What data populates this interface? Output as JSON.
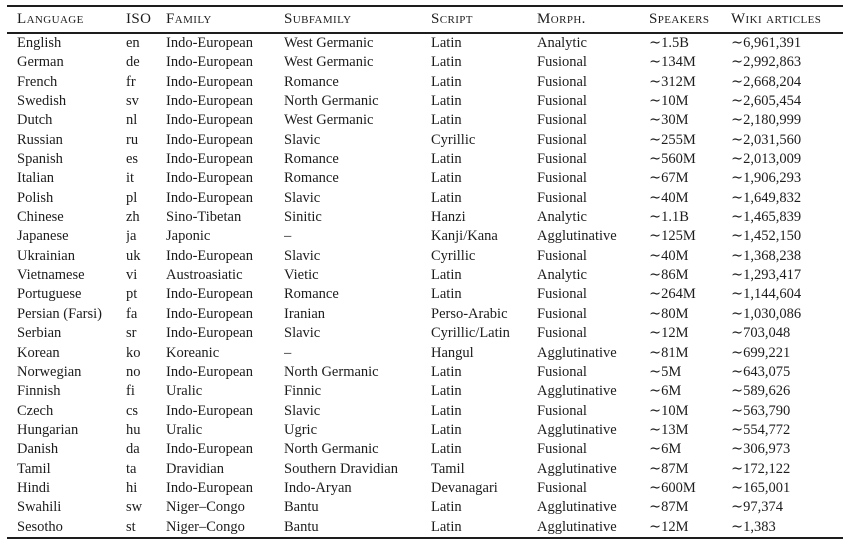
{
  "table": {
    "columns": [
      {
        "key": "language",
        "label": "Language"
      },
      {
        "key": "iso",
        "label": "ISO"
      },
      {
        "key": "family",
        "label": "Family"
      },
      {
        "key": "subfamily",
        "label": "Subfamily"
      },
      {
        "key": "script",
        "label": "Script"
      },
      {
        "key": "morph",
        "label": "Morph."
      },
      {
        "key": "speakers",
        "label": "Speakers"
      },
      {
        "key": "wiki",
        "label": "Wiki articles"
      }
    ],
    "rows": [
      [
        "English",
        "en",
        "Indo-European",
        "West Germanic",
        "Latin",
        "Analytic",
        "∼1.5B",
        "∼6,961,391"
      ],
      [
        "German",
        "de",
        "Indo-European",
        "West Germanic",
        "Latin",
        "Fusional",
        "∼134M",
        "∼2,992,863"
      ],
      [
        "French",
        "fr",
        "Indo-European",
        "Romance",
        "Latin",
        "Fusional",
        "∼312M",
        "∼2,668,204"
      ],
      [
        "Swedish",
        "sv",
        "Indo-European",
        "North Germanic",
        "Latin",
        "Fusional",
        "∼10M",
        "∼2,605,454"
      ],
      [
        "Dutch",
        "nl",
        "Indo-European",
        "West Germanic",
        "Latin",
        "Fusional",
        "∼30M",
        "∼2,180,999"
      ],
      [
        "Russian",
        "ru",
        "Indo-European",
        "Slavic",
        "Cyrillic",
        "Fusional",
        "∼255M",
        "∼2,031,560"
      ],
      [
        "Spanish",
        "es",
        "Indo-European",
        "Romance",
        "Latin",
        "Fusional",
        "∼560M",
        "∼2,013,009"
      ],
      [
        "Italian",
        "it",
        "Indo-European",
        "Romance",
        "Latin",
        "Fusional",
        "∼67M",
        "∼1,906,293"
      ],
      [
        "Polish",
        "pl",
        "Indo-European",
        "Slavic",
        "Latin",
        "Fusional",
        "∼40M",
        "∼1,649,832"
      ],
      [
        "Chinese",
        "zh",
        "Sino-Tibetan",
        "Sinitic",
        "Hanzi",
        "Analytic",
        "∼1.1B",
        "∼1,465,839"
      ],
      [
        "Japanese",
        "ja",
        "Japonic",
        "–",
        "Kanji/Kana",
        "Agglutinative",
        "∼125M",
        "∼1,452,150"
      ],
      [
        "Ukrainian",
        "uk",
        "Indo-European",
        "Slavic",
        "Cyrillic",
        "Fusional",
        "∼40M",
        "∼1,368,238"
      ],
      [
        "Vietnamese",
        "vi",
        "Austroasiatic",
        "Vietic",
        "Latin",
        "Analytic",
        "∼86M",
        "∼1,293,417"
      ],
      [
        "Portuguese",
        "pt",
        "Indo-European",
        "Romance",
        "Latin",
        "Fusional",
        "∼264M",
        "∼1,144,604"
      ],
      [
        "Persian (Farsi)",
        "fa",
        "Indo-European",
        "Iranian",
        "Perso-Arabic",
        "Fusional",
        "∼80M",
        "∼1,030,086"
      ],
      [
        "Serbian",
        "sr",
        "Indo-European",
        "Slavic",
        "Cyrillic/Latin",
        "Fusional",
        "∼12M",
        "∼703,048"
      ],
      [
        "Korean",
        "ko",
        "Koreanic",
        "–",
        "Hangul",
        "Agglutinative",
        "∼81M",
        "∼699,221"
      ],
      [
        "Norwegian",
        "no",
        "Indo-European",
        "North Germanic",
        "Latin",
        "Fusional",
        "∼5M",
        "∼643,075"
      ],
      [
        "Finnish",
        "fi",
        "Uralic",
        "Finnic",
        "Latin",
        "Agglutinative",
        "∼6M",
        "∼589,626"
      ],
      [
        "Czech",
        "cs",
        "Indo-European",
        "Slavic",
        "Latin",
        "Fusional",
        "∼10M",
        "∼563,790"
      ],
      [
        "Hungarian",
        "hu",
        "Uralic",
        "Ugric",
        "Latin",
        "Agglutinative",
        "∼13M",
        "∼554,772"
      ],
      [
        "Danish",
        "da",
        "Indo-European",
        "North Germanic",
        "Latin",
        "Fusional",
        "∼6M",
        "∼306,973"
      ],
      [
        "Tamil",
        "ta",
        "Dravidian",
        "Southern Dravidian",
        "Tamil",
        "Agglutinative",
        "∼87M",
        "∼172,122"
      ],
      [
        "Hindi",
        "hi",
        "Indo-European",
        "Indo-Aryan",
        "Devanagari",
        "Fusional",
        "∼600M",
        "∼165,001"
      ],
      [
        "Swahili",
        "sw",
        "Niger–Congo",
        "Bantu",
        "Latin",
        "Agglutinative",
        "∼87M",
        "∼97,374"
      ],
      [
        "Sesotho",
        "st",
        "Niger–Congo",
        "Bantu",
        "Latin",
        "Agglutinative",
        "∼12M",
        "∼1,383"
      ]
    ]
  }
}
